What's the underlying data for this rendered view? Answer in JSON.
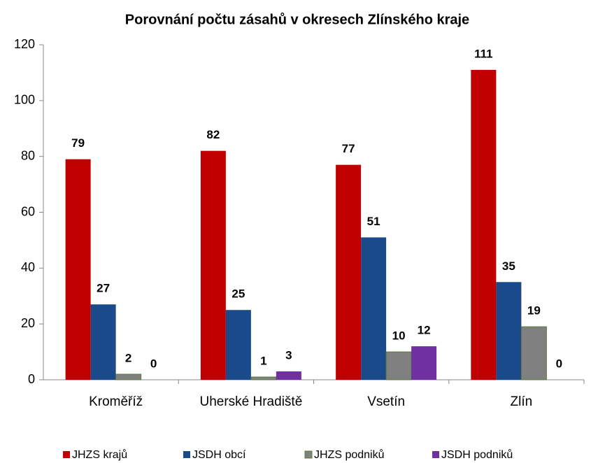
{
  "chart_data": {
    "type": "bar",
    "title": "Porovnání počtu zásahů v okresech Zlínského kraje",
    "categories": [
      "Kroměříž",
      "Uherské Hradiště",
      "Vsetín",
      "Zlín"
    ],
    "series": [
      {
        "name": "JHZS krajů",
        "color": "#c00000",
        "values": [
          79,
          82,
          77,
          111
        ]
      },
      {
        "name": "JSDH obcí",
        "color": "#1a4a8a",
        "values": [
          27,
          25,
          51,
          35
        ]
      },
      {
        "name": "JHZS podniků",
        "color": "#808080",
        "values": [
          2,
          1,
          10,
          19
        ]
      },
      {
        "name": "JSDH podniků",
        "color": "#7030a0",
        "values": [
          0,
          3,
          12,
          0
        ]
      }
    ],
    "ylim": [
      0,
      120
    ],
    "yticks": [
      0,
      20,
      40,
      60,
      80,
      100,
      120
    ],
    "grid": false,
    "legend": "bottom"
  }
}
